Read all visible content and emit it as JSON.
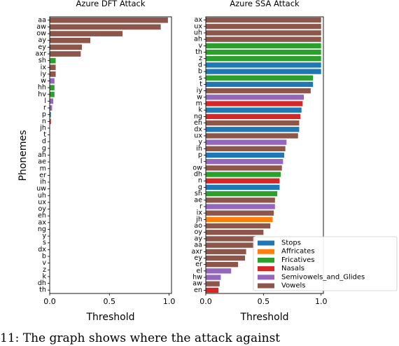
{
  "chart_data": [
    {
      "type": "bar",
      "orientation": "horizontal",
      "title": "Azure DFT Attack",
      "xlabel": "Threshold",
      "ylabel": "Phonemes",
      "xlim": [
        0,
        1.02
      ],
      "xticks": [
        "0.0",
        "0.5",
        "1.0"
      ],
      "categories": [
        "aa",
        "aw",
        "ow",
        "ay",
        "ey",
        "axr",
        "sh",
        "ix",
        "iy",
        "w",
        "hh",
        "hv",
        "l",
        "r",
        "p",
        "n",
        "jh",
        "t",
        "d",
        "g",
        "ah",
        "ae",
        "m",
        "er",
        "ih",
        "uw",
        "uh",
        "ux",
        "oy",
        "eh",
        "ax",
        "ng",
        "y",
        "s",
        "dx",
        "b",
        "v",
        "z",
        "k",
        "dh",
        "th"
      ],
      "values": [
        0.99,
        0.93,
        0.61,
        0.34,
        0.27,
        0.26,
        0.05,
        0.05,
        0.05,
        0.04,
        0.04,
        0.04,
        0.03,
        0.02,
        0.01,
        0.01,
        0.0,
        0.0,
        0.0,
        0.0,
        0.0,
        0.0,
        0.0,
        0.0,
        0.0,
        0.0,
        0.0,
        0.0,
        0.0,
        0.0,
        0.0,
        0.0,
        0.0,
        0.0,
        0.0,
        0.0,
        0.0,
        0.0,
        0.0,
        0.0,
        0.0
      ],
      "classes": [
        "Vowels",
        "Vowels",
        "Vowels",
        "Vowels",
        "Vowels",
        "Vowels",
        "Fricatives",
        "Vowels",
        "Vowels",
        "Semivowels_and_Glides",
        "Fricatives",
        "Fricatives",
        "Semivowels_and_Glides",
        "Semivowels_and_Glides",
        "Stops",
        "Nasals",
        "Affricates",
        "Stops",
        "Stops",
        "Stops",
        "Vowels",
        "Vowels",
        "Nasals",
        "Vowels",
        "Vowels",
        "Vowels",
        "Vowels",
        "Vowels",
        "Vowels",
        "Vowels",
        "Vowels",
        "Nasals",
        "Semivowels_and_Glides",
        "Fricatives",
        "Stops",
        "Stops",
        "Fricatives",
        "Fricatives",
        "Stops",
        "Fricatives",
        "Fricatives"
      ]
    },
    {
      "type": "bar",
      "orientation": "horizontal",
      "title": "Azure SSA Attack",
      "xlabel": "Threshold",
      "ylabel": "",
      "xlim": [
        0,
        1.02
      ],
      "xticks": [
        "0.0",
        "0.5",
        "1.0"
      ],
      "categories": [
        "ax",
        "ux",
        "uh",
        "ah",
        "v",
        "th",
        "z",
        "d",
        "b",
        "s",
        "t",
        "iy",
        "w",
        "m",
        "k",
        "ng",
        "eh",
        "dx",
        "ux",
        "y",
        "ih",
        "p",
        "l",
        "ow",
        "dh",
        "n",
        "g",
        "sh",
        "ae",
        "r",
        "ix",
        "jh",
        "ao",
        "oy",
        "ay",
        "aa",
        "axr",
        "ey",
        "er",
        "el",
        "hw",
        "aw",
        "en"
      ],
      "values": [
        1.0,
        1.0,
        1.0,
        1.0,
        1.0,
        1.0,
        1.0,
        1.0,
        1.0,
        0.93,
        0.93,
        0.91,
        0.85,
        0.84,
        0.83,
        0.82,
        0.81,
        0.81,
        0.8,
        0.7,
        0.69,
        0.68,
        0.67,
        0.66,
        0.65,
        0.64,
        0.64,
        0.62,
        0.6,
        0.6,
        0.59,
        0.58,
        0.56,
        0.5,
        0.43,
        0.41,
        0.35,
        0.34,
        0.28,
        0.22,
        0.13,
        0.12,
        0.11
      ],
      "classes": [
        "Vowels",
        "Vowels",
        "Vowels",
        "Vowels",
        "Fricatives",
        "Fricatives",
        "Fricatives",
        "Stops",
        "Stops",
        "Fricatives",
        "Stops",
        "Vowels",
        "Semivowels_and_Glides",
        "Nasals",
        "Stops",
        "Nasals",
        "Vowels",
        "Stops",
        "Vowels",
        "Semivowels_and_Glides",
        "Vowels",
        "Stops",
        "Semivowels_and_Glides",
        "Vowels",
        "Fricatives",
        "Nasals",
        "Stops",
        "Fricatives",
        "Vowels",
        "Semivowels_and_Glides",
        "Vowels",
        "Affricates",
        "Vowels",
        "Vowels",
        "Vowels",
        "Vowels",
        "Vowels",
        "Vowels",
        "Vowels",
        "Semivowels_and_Glides",
        "Semivowels_and_Glides",
        "Vowels",
        "Nasals"
      ],
      "legend": {
        "placement": "lower-right",
        "entries": [
          {
            "label": "Stops",
            "color": "#1f77b4"
          },
          {
            "label": "Affricates",
            "color": "#ff7f0e"
          },
          {
            "label": "Fricatives",
            "color": "#2ca02c"
          },
          {
            "label": "Nasals",
            "color": "#d62728"
          },
          {
            "label": "Semivowels_and_Glides",
            "color": "#9467bd"
          },
          {
            "label": "Vowels",
            "color": "#8c564b"
          }
        ]
      }
    }
  ],
  "caption": "11: The graph shows where the attack against"
}
